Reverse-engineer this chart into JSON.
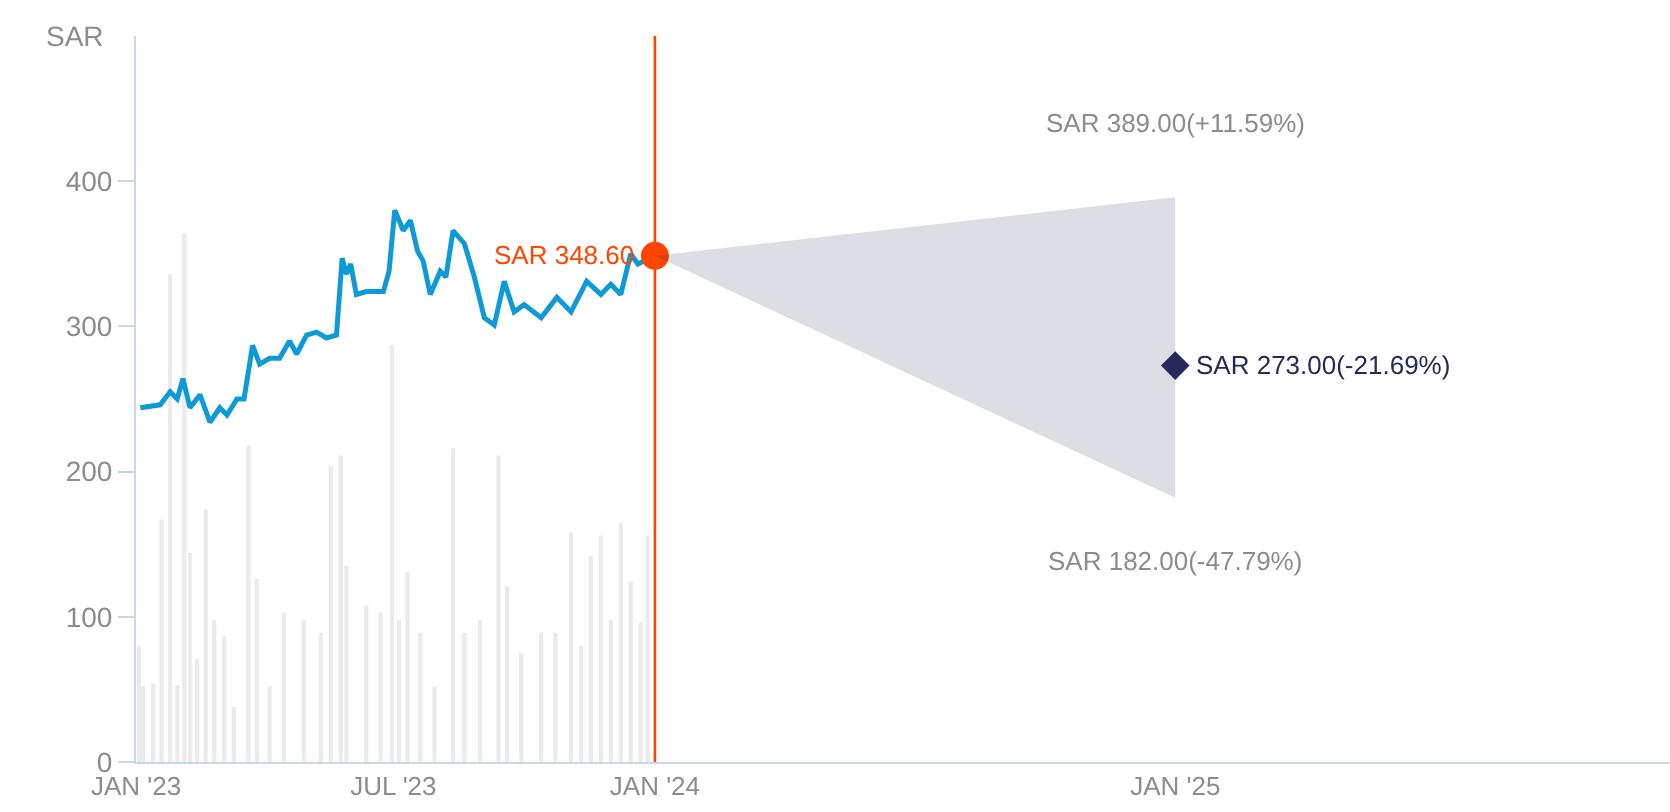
{
  "chart_data": {
    "type": "line",
    "ylabel": "SAR",
    "xlim": [
      "2023-01-01",
      "2025-12-15"
    ],
    "ylim": [
      0,
      500
    ],
    "xticks": [
      {
        "value": "2023-01-01",
        "label": "JAN '23"
      },
      {
        "value": "2023-07-01",
        "label": "JUL '23"
      },
      {
        "value": "2024-01-01",
        "label": "JAN '24"
      },
      {
        "value": "2025-01-01",
        "label": "JAN '25"
      }
    ],
    "yticks": [
      0,
      100,
      200,
      300,
      400
    ],
    "grid": false,
    "series": [
      {
        "type": "bar",
        "color": "#ebebeb",
        "x": [
          "2023-01-03",
          "2023-01-06",
          "2023-01-13",
          "2023-01-19",
          "2023-01-25",
          "2023-01-30",
          "2023-02-04",
          "2023-02-08",
          "2023-02-13",
          "2023-02-19",
          "2023-02-25",
          "2023-03-04",
          "2023-03-11",
          "2023-03-21",
          "2023-03-27",
          "2023-04-05",
          "2023-04-15",
          "2023-04-29",
          "2023-05-11",
          "2023-05-18",
          "2023-05-25",
          "2023-05-29",
          "2023-06-12",
          "2023-06-22",
          "2023-06-30",
          "2023-07-05",
          "2023-07-11",
          "2023-07-20",
          "2023-07-30",
          "2023-08-12",
          "2023-08-20",
          "2023-08-31",
          "2023-09-13",
          "2023-09-19",
          "2023-09-29",
          "2023-10-13",
          "2023-10-23",
          "2023-11-03",
          "2023-11-10",
          "2023-11-17",
          "2023-11-24",
          "2023-12-01",
          "2023-12-08",
          "2023-12-15",
          "2023-12-22",
          "2023-12-27"
        ],
        "values": [
          80,
          52,
          54,
          167,
          336,
          53,
          364,
          144,
          71,
          174,
          98,
          87,
          38,
          218,
          126,
          52,
          103,
          98,
          89,
          204,
          211,
          135,
          108,
          103,
          287,
          98,
          131,
          89,
          52,
          216,
          89,
          98,
          211,
          121,
          75,
          89,
          89,
          158,
          80,
          142,
          156,
          98,
          165,
          124,
          96,
          156
        ]
      },
      {
        "color": "#0e9ad7",
        "x": [
          "2023-01-04",
          "2023-01-18",
          "2023-01-25",
          "2023-01-30",
          "2023-02-03",
          "2023-02-08",
          "2023-02-15",
          "2023-02-22",
          "2023-03-01",
          "2023-03-06",
          "2023-03-13",
          "2023-03-18",
          "2023-03-24",
          "2023-03-29",
          "2023-04-05",
          "2023-04-12",
          "2023-04-19",
          "2023-04-24",
          "2023-05-01",
          "2023-05-08",
          "2023-05-15",
          "2023-05-22",
          "2023-05-26",
          "2023-05-29",
          "2023-06-01",
          "2023-06-05",
          "2023-06-12",
          "2023-06-24",
          "2023-06-28",
          "2023-07-02",
          "2023-07-08",
          "2023-07-13",
          "2023-07-18",
          "2023-07-22",
          "2023-07-27",
          "2023-08-03",
          "2023-08-07",
          "2023-08-12",
          "2023-08-20",
          "2023-08-27",
          "2023-09-03",
          "2023-09-10",
          "2023-09-17",
          "2023-09-24",
          "2023-10-01",
          "2023-10-13",
          "2023-10-24",
          "2023-11-03",
          "2023-11-14",
          "2023-11-24",
          "2023-12-01",
          "2023-12-08",
          "2023-12-15",
          "2023-12-20",
          "2024-01-01"
        ],
        "values": [
          244,
          246,
          255,
          250,
          264,
          244,
          253,
          234,
          244,
          239,
          250,
          250,
          287,
          274,
          278,
          278,
          290,
          281,
          294,
          296,
          292,
          294,
          347,
          336,
          343,
          322,
          324,
          324,
          338,
          380,
          366,
          373,
          352,
          345,
          322,
          338,
          334,
          366,
          357,
          334,
          306,
          301,
          331,
          310,
          315,
          306,
          320,
          310,
          331,
          322,
          329,
          322,
          350,
          343,
          348.6
        ]
      },
      {
        "type": "scatter",
        "color": "#ff4500",
        "marker": "circle",
        "x": [
          "2024-01-01"
        ],
        "values": [
          348.6
        ]
      },
      {
        "type": "scatter",
        "color": "#262a5b",
        "marker": "diamond",
        "x": [
          "2024-01-01",
          "2025-01-01"
        ],
        "values": [
          null,
          273
        ],
        "lower": [
          348.6,
          182
        ],
        "upper": [
          348.6,
          389
        ]
      }
    ],
    "ref_lines": [
      {
        "axis": "x",
        "value": "2024-01-01",
        "color": "#ff4500"
      }
    ],
    "annotations": [
      {
        "text": "SAR 348.60",
        "x": "2024-01-01",
        "y": 348.6
      },
      "SAR 389.00(+11.59%)",
      {
        "text": "SAR 273.00(-21.69%)",
        "x": "2025-01-01",
        "y": 273
      },
      "SAR 182.00(-47.79%)"
    ]
  }
}
